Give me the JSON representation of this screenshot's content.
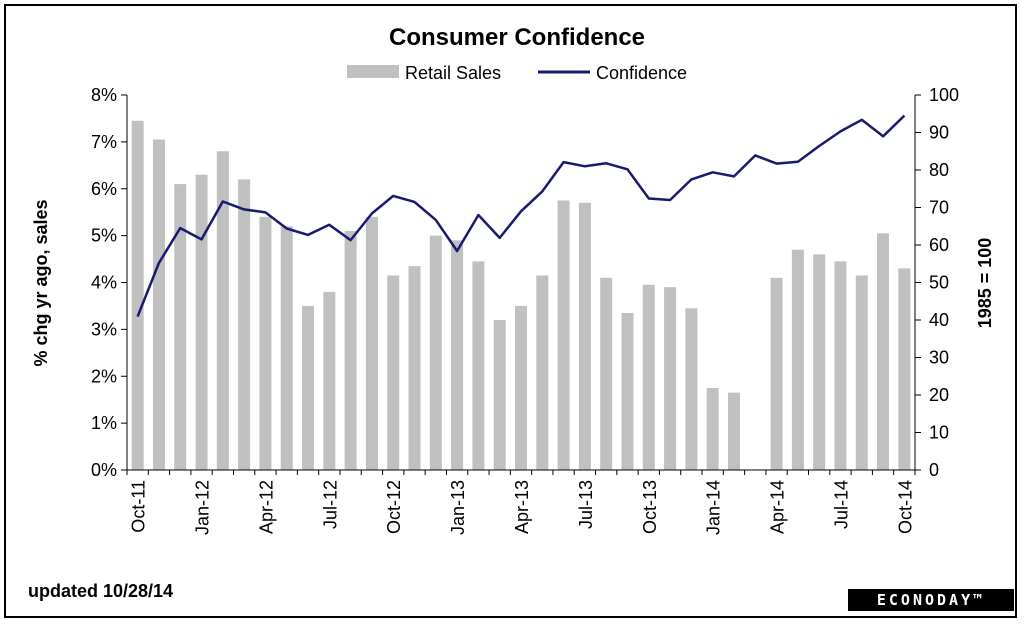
{
  "chart_data": {
    "type": "bar+line",
    "title": "Consumer Confidence",
    "legend": {
      "placement": "top-center",
      "entries": [
        "Retail Sales",
        "Confidence"
      ]
    },
    "x": [
      "Oct-11",
      "Nov-11",
      "Dec-11",
      "Jan-12",
      "Feb-12",
      "Mar-12",
      "Apr-12",
      "May-12",
      "Jun-12",
      "Jul-12",
      "Aug-12",
      "Sep-12",
      "Oct-12",
      "Nov-12",
      "Dec-12",
      "Jan-13",
      "Feb-13",
      "Mar-13",
      "Apr-13",
      "May-13",
      "Jun-13",
      "Jul-13",
      "Aug-13",
      "Sep-13",
      "Oct-13",
      "Nov-13",
      "Dec-13",
      "Jan-14",
      "Feb-14",
      "Mar-14",
      "Apr-14",
      "May-14",
      "Jun-14",
      "Jul-14",
      "Aug-14",
      "Sep-14",
      "Oct-14"
    ],
    "x_tick_labels": [
      "Oct-11",
      "Jan-12",
      "Apr-12",
      "Jul-12",
      "Oct-12",
      "Jan-13",
      "Apr-13",
      "Jul-13",
      "Oct-13",
      "Jan-14",
      "Apr-14",
      "Jul-14",
      "Oct-14"
    ],
    "series": [
      {
        "name": "Retail Sales",
        "type": "bar",
        "axis": "left",
        "color": "#c0c0c0",
        "values": [
          7.45,
          7.05,
          6.1,
          6.3,
          6.8,
          6.2,
          5.4,
          5.2,
          3.5,
          3.8,
          5.1,
          5.4,
          4.15,
          4.35,
          5.0,
          4.9,
          4.45,
          3.2,
          3.5,
          4.15,
          5.75,
          5.7,
          4.1,
          3.35,
          3.95,
          3.9,
          3.45,
          1.75,
          1.65,
          null,
          4.1,
          4.7,
          4.6,
          4.45,
          4.15,
          5.05,
          4.3
        ]
      },
      {
        "name": "Confidence",
        "type": "line",
        "axis": "right",
        "color": "#191970",
        "values": [
          40.9,
          55.2,
          64.5,
          61.5,
          71.6,
          69.5,
          68.7,
          64.4,
          62.7,
          65.4,
          61.3,
          68.4,
          73.1,
          71.5,
          66.7,
          58.4,
          68.0,
          61.9,
          69.0,
          74.3,
          82.1,
          81.0,
          81.8,
          80.2,
          72.4,
          72.0,
          77.5,
          79.4,
          78.3,
          83.9,
          81.7,
          82.2,
          86.4,
          90.3,
          93.4,
          89.0,
          94.5
        ]
      }
    ],
    "y_left": {
      "label": "% chg yr ago, sales",
      "range": [
        0,
        8
      ],
      "ticks": [
        "0%",
        "1%",
        "2%",
        "3%",
        "4%",
        "5%",
        "6%",
        "7%",
        "8%"
      ]
    },
    "y_right": {
      "label": "1985 = 100",
      "range": [
        0,
        100
      ],
      "ticks": [
        "0",
        "10",
        "20",
        "30",
        "40",
        "50",
        "60",
        "70",
        "80",
        "90",
        "100"
      ]
    },
    "grid": false
  },
  "footer": {
    "updated": "updated 10/28/14",
    "brand": "ECONODAY™"
  }
}
